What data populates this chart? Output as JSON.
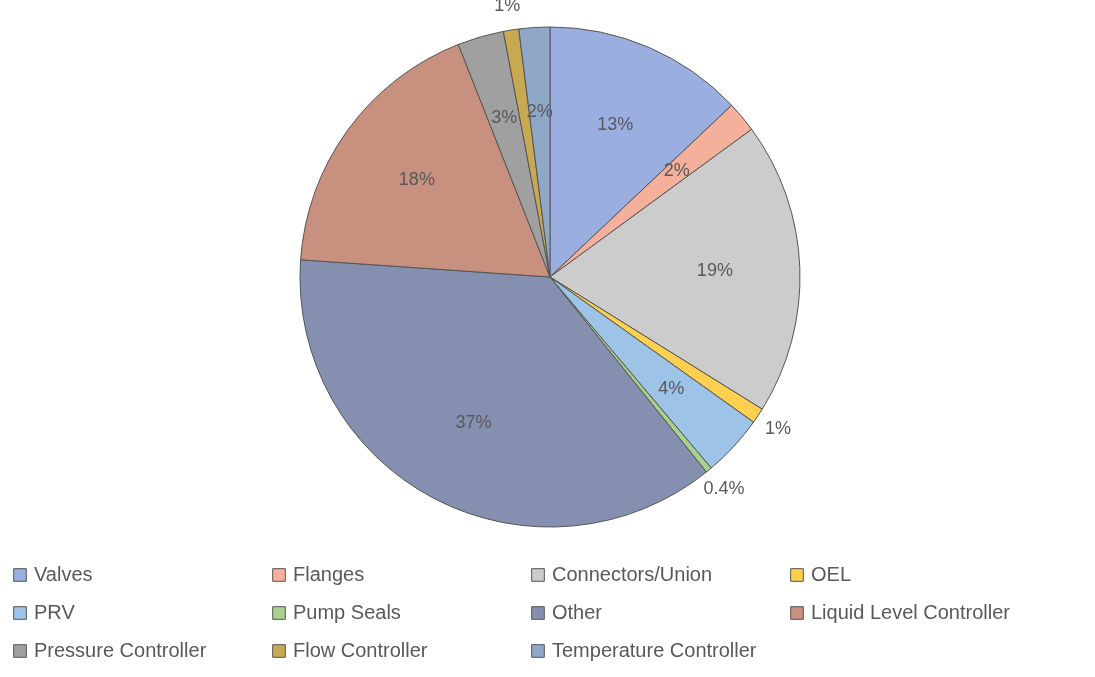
{
  "chart_data": {
    "type": "pie",
    "categories": [
      "Valves",
      "Flanges",
      "Connectors/Union",
      "OEL",
      "PRV",
      "Pump Seals",
      "Other",
      "Liquid Level Controller",
      "Pressure Controller",
      "Flow Controller",
      "Temperature Controller"
    ],
    "values": [
      13,
      2,
      19,
      1,
      4,
      0.4,
      37,
      18,
      3,
      1,
      2
    ],
    "colors": [
      "#9aaee0",
      "#f4b09a",
      "#cccccc",
      "#ffd050",
      "#9dc3e6",
      "#a9d18e",
      "#8590b0",
      "#c8907e",
      "#a0a0a0",
      "#c8a850",
      "#8fa8c8"
    ],
    "value_labels": [
      "13%",
      "2%",
      "19%",
      "1%",
      "4%",
      "0.4%",
      "37%",
      "18%",
      "3%",
      "1%",
      "2%"
    ],
    "legend": "bottom"
  }
}
